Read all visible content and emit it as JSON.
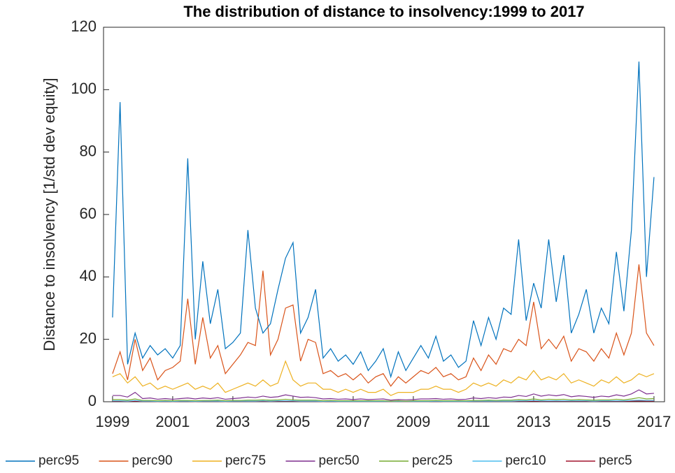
{
  "chart_data": {
    "type": "line",
    "title": "The distribution of distance to insolvency:1999 to 2017",
    "y_label": "Distance to insolvency [1/std dev equity]",
    "x": [
      1999,
      1999.25,
      1999.5,
      1999.75,
      2000,
      2000.25,
      2000.5,
      2000.75,
      2001,
      2001.25,
      2001.5,
      2001.75,
      2002,
      2002.25,
      2002.5,
      2002.75,
      2003,
      2003.25,
      2003.5,
      2003.75,
      2004,
      2004.25,
      2004.5,
      2004.75,
      2005,
      2005.25,
      2005.5,
      2005.75,
      2006,
      2006.25,
      2006.5,
      2006.75,
      2007,
      2007.25,
      2007.5,
      2007.75,
      2008,
      2008.25,
      2008.5,
      2008.75,
      2009,
      2009.25,
      2009.5,
      2009.75,
      2010,
      2010.25,
      2010.5,
      2010.75,
      2011,
      2011.25,
      2011.5,
      2011.75,
      2012,
      2012.25,
      2012.5,
      2012.75,
      2013,
      2013.25,
      2013.5,
      2013.75,
      2014,
      2014.25,
      2014.5,
      2014.75,
      2015,
      2015.25,
      2015.5,
      2015.75,
      2016,
      2016.25,
      2016.5,
      2016.75,
      2017
    ],
    "series": [
      {
        "name": "perc95",
        "color": "#0072BD",
        "values": [
          27,
          96,
          12,
          22,
          14,
          18,
          15,
          17,
          14,
          18,
          78,
          20,
          45,
          25,
          36,
          17,
          19,
          22,
          55,
          30,
          22,
          25,
          36,
          46,
          51,
          22,
          27,
          36,
          14,
          17,
          13,
          15,
          12,
          16,
          10,
          13,
          17,
          8,
          16,
          10,
          14,
          18,
          14,
          21,
          13,
          15,
          11,
          13,
          26,
          18,
          27,
          20,
          30,
          28,
          52,
          26,
          38,
          30,
          52,
          32,
          47,
          22,
          28,
          36,
          22,
          30,
          25,
          48,
          29,
          55,
          109,
          40,
          72
        ]
      },
      {
        "name": "perc90",
        "color": "#D95319",
        "values": [
          9,
          16,
          7,
          20,
          10,
          14,
          7,
          10,
          11,
          13,
          33,
          12,
          27,
          14,
          18,
          9,
          12,
          15,
          19,
          18,
          42,
          15,
          20,
          30,
          31,
          13,
          20,
          19,
          9,
          10,
          8,
          9,
          7,
          9,
          6,
          8,
          9,
          5,
          8,
          6,
          8,
          10,
          9,
          11,
          8,
          9,
          7,
          8,
          14,
          10,
          15,
          12,
          17,
          16,
          20,
          18,
          32,
          17,
          20,
          17,
          21,
          13,
          17,
          16,
          13,
          17,
          14,
          22,
          15,
          22,
          44,
          22,
          18
        ]
      },
      {
        "name": "perc75",
        "color": "#EDB120",
        "values": [
          8,
          9,
          6,
          8,
          5,
          6,
          4,
          5,
          4,
          5,
          6,
          4,
          5,
          4,
          6,
          3,
          4,
          5,
          6,
          5,
          7,
          5,
          6,
          13,
          7,
          5,
          6,
          6,
          4,
          4,
          3,
          4,
          3,
          4,
          3,
          3,
          4,
          2,
          3,
          3,
          3,
          4,
          4,
          5,
          4,
          4,
          3,
          4,
          6,
          5,
          6,
          5,
          7,
          6,
          8,
          7,
          10,
          7,
          8,
          7,
          9,
          6,
          7,
          6,
          5,
          7,
          6,
          8,
          6,
          7,
          9,
          8,
          9
        ]
      },
      {
        "name": "perc50",
        "color": "#7E2F8E",
        "values": [
          2,
          2,
          1.5,
          3,
          1,
          1.2,
          0.8,
          1,
          0.8,
          1,
          1.2,
          0.9,
          1.2,
          1,
          1.3,
          0.8,
          1,
          1.2,
          1.5,
          1.3,
          1.8,
          1.4,
          1.6,
          2.2,
          1.8,
          1.4,
          1.5,
          1.3,
          0.9,
          1,
          0.8,
          0.9,
          0.7,
          0.9,
          0.7,
          0.8,
          0.9,
          0.5,
          0.7,
          0.6,
          0.7,
          0.9,
          0.9,
          1,
          0.8,
          0.9,
          0.7,
          0.8,
          1.2,
          1,
          1.3,
          1.1,
          1.5,
          1.4,
          2,
          1.7,
          2.5,
          1.8,
          2.2,
          1.9,
          2.3,
          1.6,
          1.9,
          1.7,
          1.4,
          1.8,
          1.6,
          2.2,
          1.8,
          2.5,
          3.8,
          2.5,
          2.7
        ]
      },
      {
        "name": "perc25",
        "color": "#77AC30",
        "values": [
          0.7,
          0.7,
          0.5,
          0.9,
          0.4,
          0.4,
          0.3,
          0.4,
          0.3,
          0.4,
          0.4,
          0.3,
          0.4,
          0.4,
          0.5,
          0.3,
          0.4,
          0.4,
          0.5,
          0.5,
          0.6,
          0.5,
          0.6,
          0.8,
          0.6,
          0.5,
          0.5,
          0.5,
          0.3,
          0.4,
          0.3,
          0.3,
          0.3,
          0.3,
          0.3,
          0.3,
          0.3,
          0.2,
          0.3,
          0.2,
          0.3,
          0.3,
          0.3,
          0.4,
          0.3,
          0.3,
          0.3,
          0.3,
          0.4,
          0.4,
          0.5,
          0.4,
          0.5,
          0.5,
          0.7,
          0.6,
          0.9,
          0.6,
          0.8,
          0.7,
          0.8,
          0.6,
          0.7,
          0.6,
          0.5,
          0.6,
          0.6,
          0.8,
          0.6,
          0.9,
          1.3,
          0.9,
          1
        ]
      },
      {
        "name": "perc10",
        "color": "#4DBEEE",
        "values": [
          0.3,
          0.3,
          0.2,
          0.4,
          0.2,
          0.2,
          0.1,
          0.2,
          0.1,
          0.2,
          0.2,
          0.1,
          0.2,
          0.2,
          0.2,
          0.1,
          0.2,
          0.2,
          0.2,
          0.2,
          0.3,
          0.2,
          0.3,
          0.3,
          0.3,
          0.2,
          0.2,
          0.2,
          0.1,
          0.2,
          0.1,
          0.1,
          0.1,
          0.1,
          0.1,
          0.1,
          0.1,
          0.1,
          0.1,
          0.1,
          0.1,
          0.1,
          0.1,
          0.2,
          0.1,
          0.1,
          0.1,
          0.1,
          0.2,
          0.2,
          0.2,
          0.2,
          0.2,
          0.2,
          0.3,
          0.3,
          0.4,
          0.3,
          0.3,
          0.3,
          0.3,
          0.3,
          0.3,
          0.3,
          0.2,
          0.3,
          0.3,
          0.3,
          0.3,
          0.4,
          0.5,
          0.4,
          0.4
        ]
      },
      {
        "name": "perc5",
        "color": "#A2142F",
        "values": [
          0.15,
          0.15,
          0.1,
          0.2,
          0.1,
          0.1,
          0.05,
          0.1,
          0.05,
          0.1,
          0.1,
          0.05,
          0.1,
          0.1,
          0.1,
          0.05,
          0.1,
          0.1,
          0.1,
          0.1,
          0.15,
          0.1,
          0.15,
          0.15,
          0.15,
          0.1,
          0.1,
          0.1,
          0.05,
          0.1,
          0.05,
          0.05,
          0.05,
          0.05,
          0.05,
          0.05,
          0.05,
          0.05,
          0.05,
          0.05,
          0.05,
          0.05,
          0.05,
          0.1,
          0.05,
          0.05,
          0.05,
          0.05,
          0.1,
          0.1,
          0.1,
          0.1,
          0.1,
          0.1,
          0.15,
          0.15,
          0.2,
          0.15,
          0.15,
          0.15,
          0.15,
          0.15,
          0.15,
          0.15,
          0.1,
          0.15,
          0.15,
          0.15,
          0.15,
          0.2,
          0.25,
          0.2,
          0.2
        ]
      }
    ],
    "xlim": [
      1998.7,
      2017.35
    ],
    "xticks": [
      1999,
      2001,
      2003,
      2005,
      2007,
      2009,
      2011,
      2013,
      2015,
      2017
    ],
    "ylim": [
      0,
      120
    ],
    "yticks": [
      0,
      20,
      40,
      60,
      80,
      100,
      120
    ]
  }
}
